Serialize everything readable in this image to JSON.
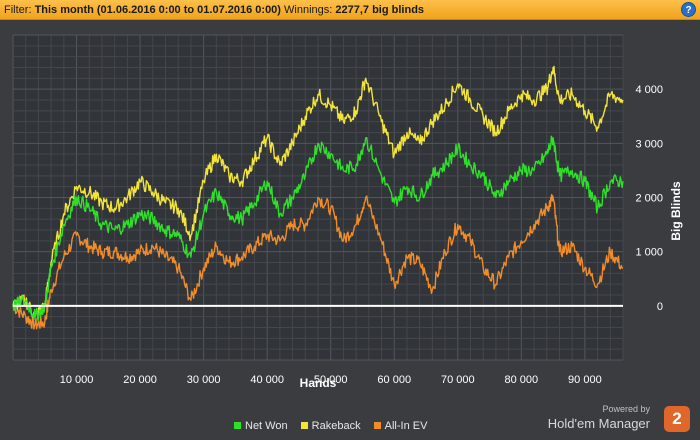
{
  "filter": {
    "label": "Filter:",
    "value": "This month (01.06.2016 0:00 to 01.07.2016 0:00)",
    "winnings_label": "Winnings:",
    "winnings_value": "2277,7 big blinds",
    "help_label": "?"
  },
  "legend": {
    "items": [
      {
        "label": "Net Won",
        "color": "#2fe02a"
      },
      {
        "label": "Rakeback",
        "color": "#f2e43a"
      },
      {
        "label": "All-In EV",
        "color": "#f08c2a"
      }
    ]
  },
  "branding": {
    "powered": "Powered by",
    "name": "Hold'em Manager",
    "logo": "2"
  },
  "chart_data": {
    "type": "line",
    "xlabel": "Hands",
    "ylabel": "Big Blinds",
    "xlim": [
      0,
      96000
    ],
    "ylim": [
      -1000,
      5000
    ],
    "xticks": [
      10000,
      20000,
      30000,
      40000,
      50000,
      60000,
      70000,
      80000,
      90000
    ],
    "xtick_labels": [
      "10 000",
      "20 000",
      "30 000",
      "40 000",
      "50 000",
      "60 000",
      "70 000",
      "80 000",
      "90 000"
    ],
    "yticks": [
      0,
      1000,
      2000,
      3000,
      4000
    ],
    "ytick_labels": [
      "0",
      "1 000",
      "2 000",
      "3 000",
      "4 000"
    ],
    "grid": true,
    "legend_position": "bottom",
    "x": [
      0,
      2000,
      3500,
      5000,
      6000,
      8000,
      10000,
      12000,
      14000,
      16000,
      18000,
      20000,
      22000,
      24000,
      26000,
      28000,
      30000,
      32000,
      34000,
      36000,
      38000,
      40000,
      42000,
      44000,
      46000,
      48000,
      50000,
      52000,
      54000,
      55500,
      58000,
      60000,
      62000,
      64000,
      66000,
      68000,
      70000,
      72000,
      74000,
      76000,
      78000,
      80000,
      82000,
      84000,
      85000,
      86000,
      88000,
      90000,
      92000,
      94000,
      96000
    ],
    "series": [
      {
        "name": "Net Won",
        "color": "#2fe02a",
        "values": [
          0,
          100,
          -200,
          0,
          700,
          1500,
          2000,
          1800,
          1500,
          1400,
          1500,
          1700,
          1600,
          1400,
          1300,
          900,
          1700,
          2100,
          1700,
          1600,
          1900,
          2300,
          1700,
          2000,
          2400,
          3000,
          2800,
          2500,
          2600,
          3100,
          2400,
          1900,
          2200,
          2000,
          2400,
          2600,
          2900,
          2600,
          2400,
          2000,
          2300,
          2500,
          2500,
          2800,
          3100,
          2400,
          2500,
          2300,
          1800,
          2300,
          2300
        ]
      },
      {
        "name": "Rakeback",
        "color": "#f2e43a",
        "values": [
          0,
          100,
          -200,
          0,
          800,
          1700,
          2200,
          2100,
          1900,
          1800,
          2000,
          2300,
          2100,
          1900,
          1800,
          1300,
          2300,
          2800,
          2400,
          2300,
          2700,
          3100,
          2600,
          3000,
          3500,
          3900,
          3700,
          3400,
          3600,
          4200,
          3400,
          2800,
          3200,
          3000,
          3400,
          3700,
          4100,
          3800,
          3500,
          3200,
          3600,
          3900,
          3800,
          4000,
          4400,
          3800,
          3900,
          3600,
          3300,
          3900,
          3800
        ]
      },
      {
        "name": "All-In EV",
        "color": "#f08c2a",
        "values": [
          0,
          -200,
          -350,
          -300,
          300,
          900,
          1300,
          1100,
          1000,
          1000,
          900,
          1000,
          1100,
          900,
          700,
          100,
          700,
          1100,
          800,
          900,
          1100,
          1300,
          1200,
          1500,
          1500,
          2000,
          1800,
          1200,
          1500,
          2000,
          1200,
          400,
          900,
          800,
          300,
          1000,
          1500,
          1200,
          700,
          400,
          900,
          1200,
          1500,
          1800,
          2000,
          1000,
          1100,
          700,
          400,
          1000,
          700
        ]
      }
    ]
  }
}
